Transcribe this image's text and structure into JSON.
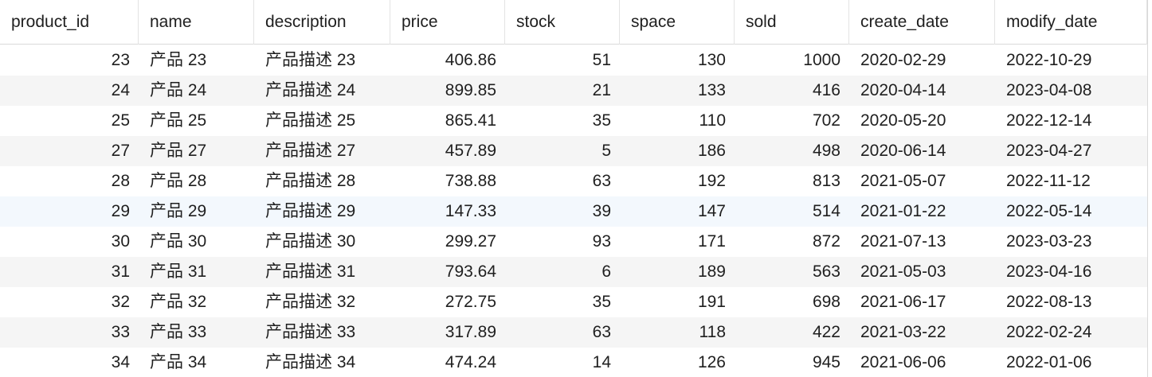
{
  "columns": [
    "product_id",
    "name",
    "description",
    "price",
    "stock",
    "space",
    "sold",
    "create_date",
    "modify_date"
  ],
  "rows": [
    [
      "23",
      "产品 23",
      "产品描述 23",
      "406.86",
      "51",
      "130",
      "1000",
      "2020-02-29",
      "2022-10-29"
    ],
    [
      "24",
      "产品 24",
      "产品描述 24",
      "899.85",
      "21",
      "133",
      "416",
      "2020-04-14",
      "2023-04-08"
    ],
    [
      "25",
      "产品 25",
      "产品描述 25",
      "865.41",
      "35",
      "110",
      "702",
      "2020-05-20",
      "2022-12-14"
    ],
    [
      "27",
      "产品 27",
      "产品描述 27",
      "457.89",
      "5",
      "186",
      "498",
      "2020-06-14",
      "2023-04-27"
    ],
    [
      "28",
      "产品 28",
      "产品描述 28",
      "738.88",
      "63",
      "192",
      "813",
      "2021-05-07",
      "2022-11-12"
    ],
    [
      "29",
      "产品 29",
      "产品描述 29",
      "147.33",
      "39",
      "147",
      "514",
      "2021-01-22",
      "2022-05-14"
    ],
    [
      "30",
      "产品 30",
      "产品描述 30",
      "299.27",
      "93",
      "171",
      "872",
      "2021-07-13",
      "2023-03-23"
    ],
    [
      "31",
      "产品 31",
      "产品描述 31",
      "793.64",
      "6",
      "189",
      "563",
      "2021-05-03",
      "2023-04-16"
    ],
    [
      "32",
      "产品 32",
      "产品描述 32",
      "272.75",
      "35",
      "191",
      "698",
      "2021-06-17",
      "2022-08-13"
    ],
    [
      "33",
      "产品 33",
      "产品描述 33",
      "317.89",
      "63",
      "118",
      "422",
      "2021-03-22",
      "2022-02-24"
    ],
    [
      "34",
      "产品 34",
      "产品描述 34",
      "474.24",
      "14",
      "126",
      "945",
      "2021-06-06",
      "2022-01-06"
    ]
  ],
  "selected_row_index": 5,
  "colors": {
    "alt_row": "#f5f5f5",
    "selected_row": "#f3f8fd",
    "grid_line": "#d9d9d9",
    "text": "#1f1f1f"
  }
}
